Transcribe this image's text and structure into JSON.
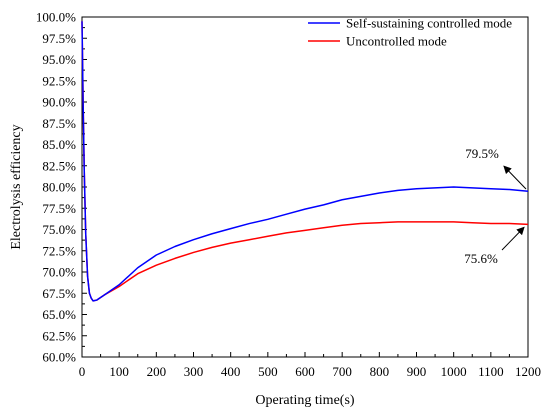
{
  "chart_data": {
    "type": "line",
    "title": "",
    "xlabel": "Operating time(s)",
    "ylabel": "Electrolysis efficiency",
    "xlim": [
      0,
      1200
    ],
    "ylim": [
      60,
      100
    ],
    "x_ticks": [
      0,
      100,
      200,
      300,
      400,
      500,
      600,
      700,
      800,
      900,
      1000,
      1100,
      1200
    ],
    "y_ticks": [
      60,
      62.5,
      65,
      67.5,
      70,
      72.5,
      75,
      77.5,
      80,
      82.5,
      85,
      87.5,
      90,
      92.5,
      95,
      97.5,
      100
    ],
    "x_tick_labels": [
      "0",
      "100",
      "200",
      "300",
      "400",
      "500",
      "600",
      "700",
      "800",
      "900",
      "1000",
      "1100",
      "1200"
    ],
    "y_tick_labels": [
      "60.0%",
      "62.5%",
      "65.0%",
      "67.5%",
      "70.0%",
      "72.5%",
      "75.0%",
      "77.5%",
      "80.0%",
      "82.5%",
      "85.0%",
      "87.5%",
      "90.0%",
      "92.5%",
      "95.0%",
      "97.5%",
      "100.0%"
    ],
    "grid": false,
    "legend_position": "top-right",
    "series": [
      {
        "name": "Self-sustaining controlled mode",
        "color": "#0000ff",
        "x": [
          0,
          3,
          6,
          10,
          15,
          20,
          25,
          30,
          40,
          50,
          60,
          80,
          100,
          150,
          200,
          250,
          300,
          350,
          400,
          450,
          500,
          550,
          600,
          650,
          700,
          750,
          800,
          850,
          900,
          950,
          1000,
          1050,
          1100,
          1150,
          1200
        ],
        "y": [
          99.5,
          90.0,
          82.0,
          74.5,
          69.5,
          67.5,
          66.9,
          66.6,
          66.7,
          67.0,
          67.3,
          67.9,
          68.5,
          70.5,
          72.0,
          73.0,
          73.8,
          74.5,
          75.1,
          75.7,
          76.2,
          76.8,
          77.4,
          77.9,
          78.5,
          78.9,
          79.3,
          79.6,
          79.8,
          79.9,
          80.0,
          79.9,
          79.8,
          79.7,
          79.5
        ]
      },
      {
        "name": "Uncontrolled mode",
        "color": "#ff0000",
        "x": [
          0,
          3,
          6,
          10,
          15,
          20,
          25,
          30,
          40,
          50,
          60,
          80,
          100,
          150,
          200,
          250,
          300,
          350,
          400,
          450,
          500,
          550,
          600,
          650,
          700,
          750,
          800,
          850,
          900,
          950,
          1000,
          1050,
          1100,
          1150,
          1200
        ],
        "y": [
          99.5,
          90.0,
          82.0,
          74.5,
          69.5,
          67.5,
          66.9,
          66.6,
          66.7,
          67.0,
          67.3,
          67.8,
          68.3,
          69.8,
          70.8,
          71.6,
          72.3,
          72.9,
          73.4,
          73.8,
          74.2,
          74.6,
          74.9,
          75.2,
          75.5,
          75.7,
          75.8,
          75.9,
          75.9,
          75.9,
          75.9,
          75.8,
          75.7,
          75.7,
          75.6
        ]
      }
    ],
    "annotations": [
      {
        "text": "79.5%",
        "series": 0,
        "x": 1200,
        "y": 79.5
      },
      {
        "text": "75.6%",
        "series": 1,
        "x": 1200,
        "y": 75.6
      }
    ]
  }
}
